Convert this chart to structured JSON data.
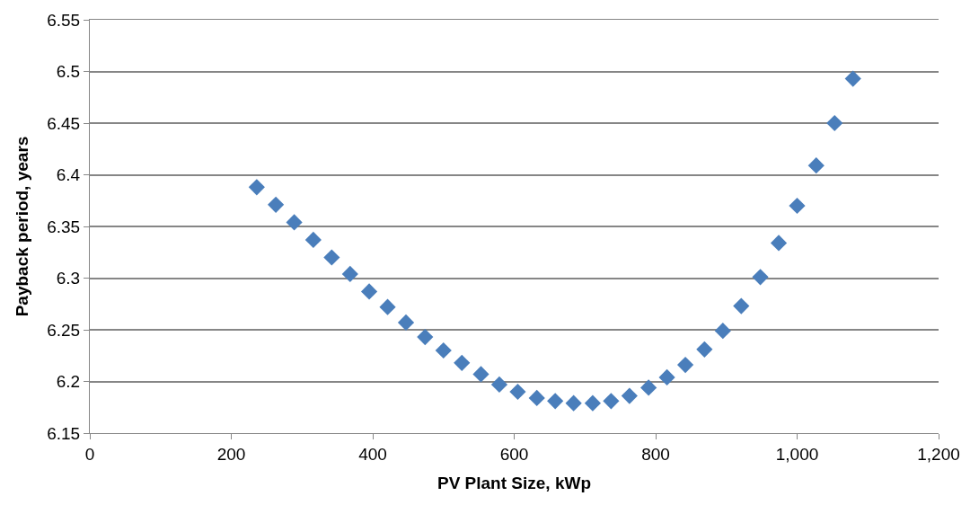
{
  "chart_data": {
    "type": "scatter",
    "xlabel": "PV Plant Size, kWp",
    "ylabel": "Payback period, years",
    "x": [
      236,
      263,
      289,
      316,
      342,
      368,
      395,
      421,
      447,
      474,
      500,
      526,
      553,
      579,
      605,
      632,
      658,
      684,
      711,
      737,
      763,
      790,
      816,
      842,
      869,
      895,
      921,
      948,
      974,
      1000,
      1027,
      1053,
      1079
    ],
    "series": [
      {
        "color": "#4a7ebb",
        "values": [
          6.388,
          6.371,
          6.354,
          6.337,
          6.32,
          6.304,
          6.287,
          6.272,
          6.257,
          6.243,
          6.23,
          6.218,
          6.207,
          6.197,
          6.19,
          6.184,
          6.181,
          6.179,
          6.179,
          6.181,
          6.186,
          6.194,
          6.204,
          6.216,
          6.231,
          6.249,
          6.273,
          6.301,
          6.334,
          6.37,
          6.409,
          6.45,
          6.493
        ]
      }
    ],
    "xlim": [
      0,
      1200
    ],
    "xticks": [
      0,
      200,
      400,
      600,
      800,
      {
        "value": 1000,
        "label": "1,000"
      },
      {
        "value": 1200,
        "label": "1,200"
      }
    ],
    "ylim": [
      6.15,
      6.55
    ],
    "yticks": [
      6.15,
      6.2,
      6.25,
      6.3,
      6.35,
      6.4,
      6.45,
      6.5,
      6.55
    ],
    "grid": "y",
    "marker": "diamond"
  }
}
